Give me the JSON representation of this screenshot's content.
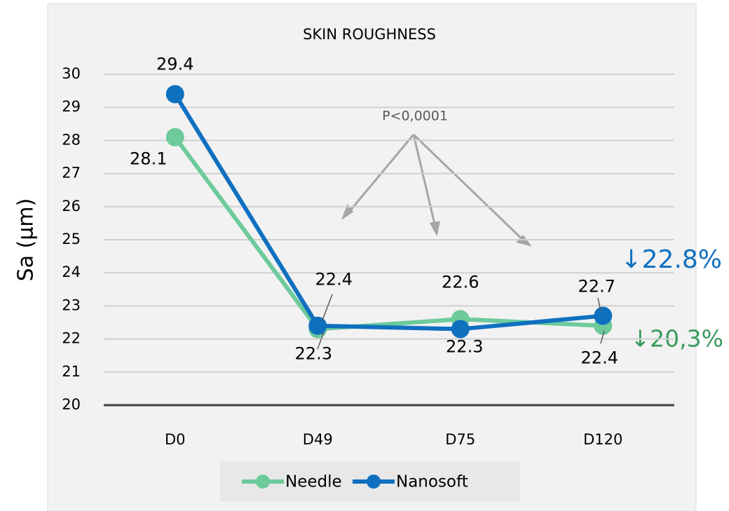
{
  "chart_data": {
    "type": "line",
    "title": "SKIN ROUGHNESS",
    "y_label": "Sa (µm)",
    "categories": [
      "D0",
      "D49",
      "D75",
      "D120"
    ],
    "series": [
      {
        "name": "Needle",
        "color": "#6dca9b",
        "values": [
          28.1,
          22.3,
          22.6,
          22.4
        ]
      },
      {
        "name": "Nanosoft",
        "color": "#1070c0",
        "values": [
          29.4,
          22.4,
          22.3,
          22.7
        ]
      }
    ],
    "ylim": [
      20,
      30
    ],
    "yticks": [
      20,
      21,
      22,
      23,
      24,
      25,
      26,
      27,
      28,
      29,
      30
    ],
    "grid": true,
    "legend": "bottom",
    "annotations": [
      "P<0,0001",
      "↓22.8%",
      "↓20,3%"
    ]
  }
}
